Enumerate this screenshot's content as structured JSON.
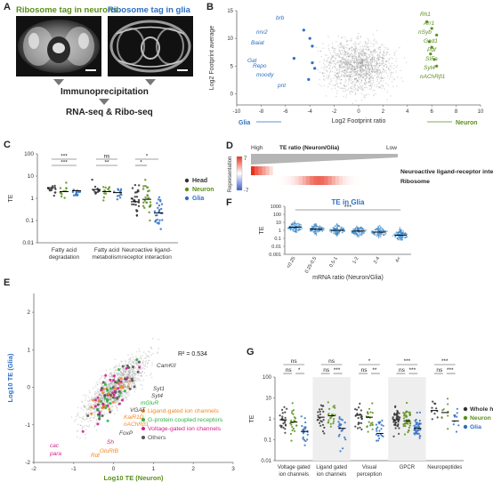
{
  "panelA": {
    "label": "A",
    "neuron_title": "Ribosome tag in neurons",
    "glia_title": "Ribosome tag in glia",
    "step1": "Immunoprecipitation",
    "step2": "RNA-seq & Ribo-seq"
  },
  "panelB": {
    "label": "B",
    "ylabel": "Log2 Footprint average",
    "xlabel": "Log2 Footprint ratio",
    "left_arrow": "Glia",
    "right_arrow": "Neuron",
    "xticks": [
      "-10",
      "-8",
      "-6",
      "-4",
      "-2",
      "0",
      "2",
      "4",
      "6",
      "8",
      "10"
    ],
    "yticks": [
      "15",
      "10",
      "5",
      "0"
    ],
    "glia_genes": [
      "brb",
      "nrv2",
      "Baiat",
      "Gat",
      "Repo",
      "moody",
      "pnt"
    ],
    "neuron_genes": [
      "Rh1",
      "Arr1",
      "nSyb",
      "Gad1",
      "Pdf",
      "SIFa",
      "Syt4",
      "nAChRβ1"
    ]
  },
  "panelC": {
    "label": "C",
    "ylabel": "TE",
    "yticks": [
      "100",
      "10",
      "1",
      "0.1",
      "0.01"
    ],
    "groups": [
      "Fatty acid degradation",
      "Fatty acid metabolism",
      "Neuroactive ligand-receptor interaction"
    ],
    "group_lines": [
      [
        "Fatty acid",
        "degradation"
      ],
      [
        "Fatty acid",
        "metabolism"
      ],
      [
        "Neuroactive ligand-",
        "receptor interaction"
      ]
    ],
    "legend": [
      "Head",
      "Neuron",
      "Glia"
    ],
    "sig": [
      "***",
      "***",
      "ns",
      "**",
      "*",
      "*"
    ]
  },
  "panelD": {
    "label": "D",
    "high": "High",
    "low": "Low",
    "title": "TE ratio (Neuron/Glia)",
    "ylabel": "Representation",
    "scale_top": "7",
    "scale_bottom": "-7",
    "row1": "Neuroactive ligand-receptor interaction",
    "row2": "Ribosome"
  },
  "panelE": {
    "label": "E",
    "ylabel": "Log10 TE (Glia)",
    "xlabel": "Log10 TE (Neuron)",
    "r2": "R² = 0.534",
    "xticks": [
      "-2",
      "-1",
      "0",
      "1",
      "2",
      "3"
    ],
    "yticks": [
      "2",
      "1",
      "0",
      "-1",
      "-2"
    ],
    "legend": [
      "Ligand-gated ion channels",
      "G-protein coupled receptors",
      "Voltage-gated ion channels",
      "Others"
    ],
    "genes": [
      "CamKII",
      "Syt1",
      "Syt4",
      "mGluR",
      "VGAT",
      "KaiR1D",
      "nAChRβ1",
      "FoxP",
      "Sh",
      "GluRIB",
      "cac",
      "para",
      "Rdl"
    ]
  },
  "panelF": {
    "label": "F",
    "title": "TE in Glia",
    "ylabel": "TE",
    "xlabel": "mRNA ratio (Neuron/Glia)",
    "yticks": [
      "1000",
      "100",
      "10",
      "1",
      "0.1",
      "0.01",
      "0.001"
    ],
    "categories": [
      "<0.25",
      "0.25-0.5",
      "0.5-1",
      "1-2",
      "2-4",
      "4<"
    ],
    "sig": "***"
  },
  "panelG": {
    "label": "G",
    "ylabel": "TE",
    "yticks": [
      "100",
      "10",
      "1",
      "0.1",
      "0.01"
    ],
    "groups": [
      "Voltage gated ion channels",
      "Ligand gated ion channels",
      "Visual perception",
      "GPCR",
      "Neuropeptides"
    ],
    "group_lines": [
      [
        "Voltage gated",
        "ion channels"
      ],
      [
        "Ligand gated",
        "ion channels"
      ],
      [
        "Visual",
        "perception"
      ],
      [
        "GPCR",
        ""
      ],
      [
        "Neuropeptides",
        ""
      ]
    ],
    "legend": [
      "Whole head",
      "Neuron",
      "Glia"
    ],
    "sig_top": [
      "ns",
      "ns",
      "*",
      "***",
      "***"
    ],
    "sig_bottom": [
      [
        "ns",
        "*"
      ],
      [
        "ns",
        "***"
      ],
      [
        "ns",
        "**"
      ],
      [
        "ns",
        "***"
      ],
      [
        "ns",
        "***"
      ]
    ]
  },
  "colors": {
    "neuron_green": "#5a8f1c",
    "glia_blue": "#2e6fc4",
    "head_dark": "#333333",
    "ligand_orange": "#f08a2a",
    "gpcr_green": "#2fb344",
    "voltage_magenta": "#d21e8c",
    "others_gray": "#9a9a9a",
    "heat_red": "#e8321e"
  }
}
